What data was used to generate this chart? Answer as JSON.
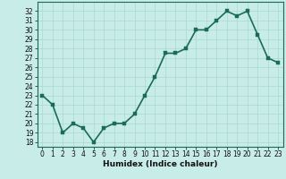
{
  "x": [
    0,
    1,
    2,
    3,
    4,
    5,
    6,
    7,
    8,
    9,
    10,
    11,
    12,
    13,
    14,
    15,
    16,
    17,
    18,
    19,
    20,
    21,
    22,
    23
  ],
  "y": [
    23,
    22,
    19,
    20,
    19.5,
    18,
    19.5,
    20,
    20,
    21,
    23,
    25,
    27.5,
    27.5,
    28,
    30,
    30,
    31,
    32,
    31.5,
    32,
    29.5,
    27,
    26.5
  ],
  "line_color": "#1a6b5a",
  "marker_color": "#1a6b5a",
  "bg_color": "#c8ece8",
  "grid_color": "#a8d8d0",
  "xlabel": "Humidex (Indice chaleur)",
  "xlim": [
    -0.5,
    23.5
  ],
  "ylim": [
    17.5,
    33.0
  ],
  "yticks": [
    18,
    19,
    20,
    21,
    22,
    23,
    24,
    25,
    26,
    27,
    28,
    29,
    30,
    31,
    32
  ],
  "xticks": [
    0,
    1,
    2,
    3,
    4,
    5,
    6,
    7,
    8,
    9,
    10,
    11,
    12,
    13,
    14,
    15,
    16,
    17,
    18,
    19,
    20,
    21,
    22,
    23
  ],
  "xtick_labels": [
    "0",
    "1",
    "2",
    "3",
    "4",
    "5",
    "6",
    "7",
    "8",
    "9",
    "10",
    "11",
    "12",
    "13",
    "14",
    "15",
    "16",
    "17",
    "18",
    "19",
    "20",
    "21",
    "22",
    "23"
  ],
  "ytick_labels": [
    "18",
    "19",
    "20",
    "21",
    "22",
    "23",
    "24",
    "25",
    "26",
    "27",
    "28",
    "29",
    "30",
    "31",
    "32"
  ],
  "marker_size": 2.5,
  "line_width": 1.2,
  "tick_fontsize": 5.5,
  "xlabel_fontsize": 6.5
}
